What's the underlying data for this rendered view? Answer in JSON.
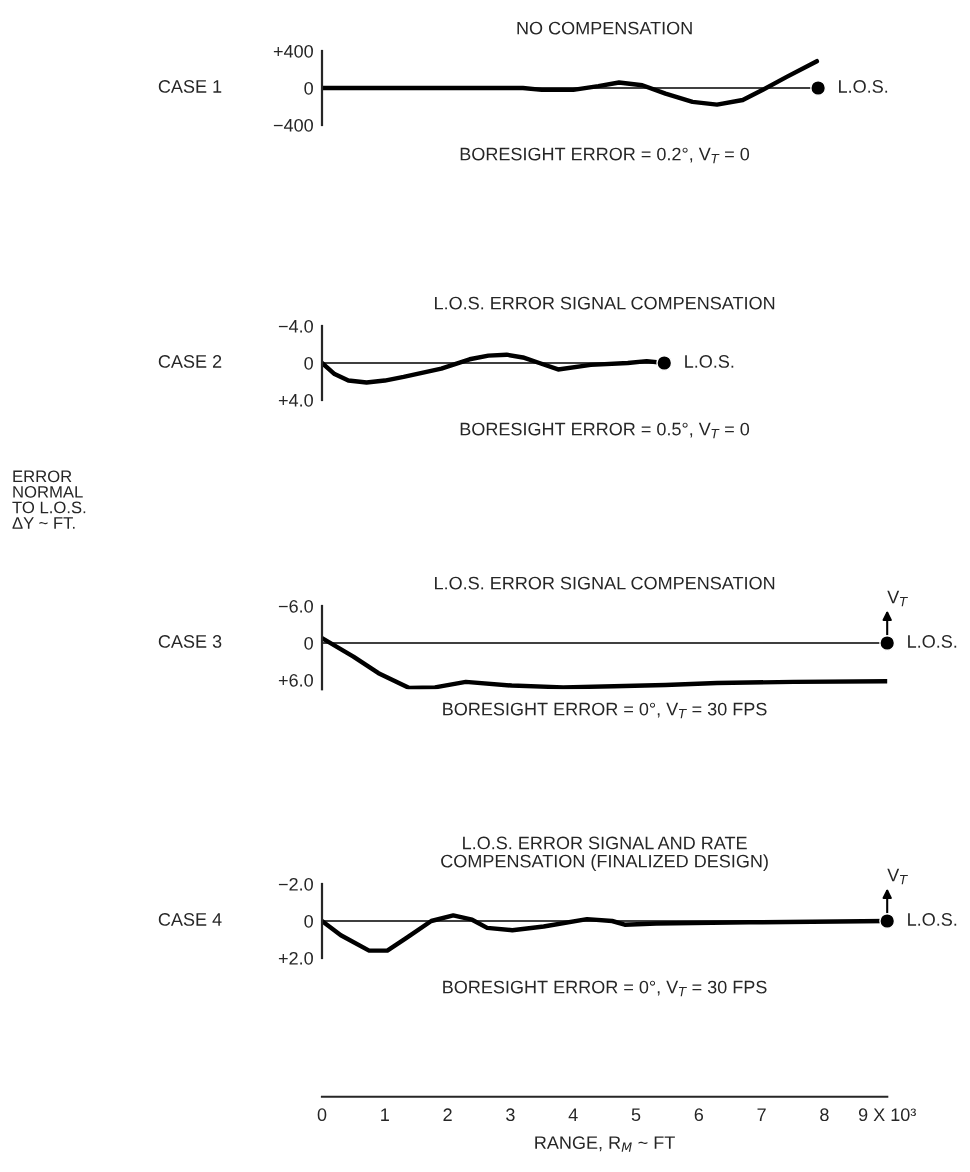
{
  "chart_data": [
    {
      "type": "line",
      "title": "NO COMPENSATION",
      "ylabel": "CASE 1",
      "xlim": [
        0,
        9
      ],
      "ylim": [
        -400,
        400
      ],
      "yticks": [
        {
          "value": 400,
          "label": "+400"
        },
        0,
        {
          "value": -400,
          "label": "−400"
        }
      ],
      "tick_labels": "y",
      "series": [
        {
          "color": "#000000",
          "x": [
            0,
            1,
            2,
            3,
            3.2,
            3.5,
            4.0,
            4.4,
            4.73,
            5.1,
            5.47,
            5.9,
            6.29,
            6.7,
            7.02,
            7.4,
            7.88
          ],
          "values": [
            0,
            0,
            0,
            0,
            0,
            -20,
            -20,
            20,
            60,
            30,
            -60,
            -150,
            -180,
            -130,
            -20,
            120,
            290
          ]
        },
        {
          "type": "scatter",
          "marker": "circle",
          "color": "#000000",
          "x": [
            7.9
          ],
          "values": [
            0
          ]
        }
      ],
      "ref_lines": [
        {
          "axis": "y",
          "value": 0,
          "label": "L.O.S."
        }
      ],
      "annotations": [
        "BORESIGHT ERROR = 0.2°, V$_{T}$ = 0"
      ]
    },
    {
      "type": "line",
      "title": "L.O.S. ERROR SIGNAL COMPENSATION",
      "ylabel": "CASE 2",
      "xlim": [
        0,
        9
      ],
      "ylim": [
        4,
        -4
      ],
      "yticks": [
        {
          "value": -4,
          "label": "−4.0"
        },
        0,
        {
          "value": 4,
          "label": "+4.0"
        }
      ],
      "tick_labels": "y",
      "series": [
        {
          "color": "#000000",
          "x": [
            0,
            0.2,
            0.42,
            0.71,
            1.0,
            1.3,
            1.9,
            2.35,
            2.65,
            2.94,
            3.2,
            3.46,
            3.76,
            4.28,
            4.87,
            5.17,
            5.45
          ],
          "values": [
            0,
            1.2,
            1.9,
            2.1,
            1.9,
            1.5,
            0.6,
            -0.4,
            -0.8,
            -0.9,
            -0.6,
            0,
            0.7,
            0.2,
            0,
            -0.2,
            0
          ]
        },
        {
          "type": "scatter",
          "marker": "circle",
          "color": "#000000",
          "x": [
            5.45
          ],
          "values": [
            0
          ]
        }
      ],
      "ref_lines": [
        {
          "axis": "y",
          "value": 0,
          "label": "L.O.S."
        }
      ],
      "annotations": [
        "BORESIGHT ERROR = 0.5°, V$_{T}$ = 0",
        "ERROR\nNORMAL\nTO L.O.S.\nΔY ~ FT."
      ]
    },
    {
      "type": "line",
      "title": "L.O.S. ERROR SIGNAL COMPENSATION",
      "ylabel": "CASE 3",
      "xlim": [
        0,
        9
      ],
      "ylim": [
        7.5,
        -6
      ],
      "yticks": [
        {
          "value": -6,
          "label": "−6.0"
        },
        0,
        {
          "value": 6,
          "label": "+6.0"
        }
      ],
      "tick_labels": "y",
      "series": [
        {
          "color": "#000000",
          "x": [
            0,
            0.5,
            0.9,
            1.39,
            1.8,
            2.29,
            3.02,
            3.84,
            4.65,
            5.47,
            6.29,
            7.51,
            9.0
          ],
          "values": [
            -0.8,
            2.2,
            4.9,
            7.3,
            7.2,
            6.3,
            6.9,
            7.2,
            7.0,
            6.8,
            6.5,
            6.3,
            6.2
          ]
        },
        {
          "type": "scatter",
          "marker": "circle",
          "color": "#000000",
          "x": [
            9.0
          ],
          "values": [
            0
          ]
        }
      ],
      "ref_lines": [
        {
          "axis": "y",
          "value": 0,
          "label": "L.O.S."
        }
      ],
      "annotations": [
        "BORESIGHT ERROR = 0°, V$_{T}$ = 30 FPS",
        {
          "text": "V$_{T}$",
          "x": 9.0,
          "y": 0
        }
      ]
    },
    {
      "type": "line",
      "title": "L.O.S. ERROR SIGNAL AND RATE\nCOMPENSATION (FINALIZED DESIGN)",
      "ylabel": "CASE 4",
      "xlabel": "RANGE, R$_{M}$ ~ FT",
      "xlim": [
        0,
        9
      ],
      "xticks": [
        0,
        1,
        2,
        3,
        4,
        5,
        6,
        7,
        8,
        {
          "value": 9,
          "label": "9 X 10³"
        }
      ],
      "ylim": [
        9.5,
        -2
      ],
      "yticks": [
        {
          "value": -2,
          "label": "−2.0"
        },
        0,
        {
          "value": 2,
          "label": "+2.0"
        }
      ],
      "series": [
        {
          "color": "#000000",
          "x": [
            0,
            0.3,
            0.75,
            1.04,
            1.34,
            1.74,
            2.09,
            2.39,
            2.63,
            3.03,
            3.53,
            4.22,
            4.62,
            4.82,
            5.32,
            6.8,
            9.0
          ],
          "values": [
            0,
            0.77,
            1.6,
            1.6,
            0.93,
            0,
            -0.3,
            -0.07,
            0.37,
            0.5,
            0.3,
            -0.1,
            0,
            0.2,
            0.13,
            0.07,
            0
          ]
        },
        {
          "type": "scatter",
          "marker": "circle",
          "color": "#000000",
          "x": [
            9.0
          ],
          "values": [
            0
          ]
        }
      ],
      "ref_lines": [
        {
          "axis": "y",
          "value": 0,
          "label": "L.O.S."
        }
      ],
      "annotations": [
        "BORESIGHT ERROR = 0°, V$_{T}$ = 30 FPS",
        {
          "text": "V$_{T}$",
          "x": 9.0,
          "y": 0
        }
      ]
    }
  ]
}
